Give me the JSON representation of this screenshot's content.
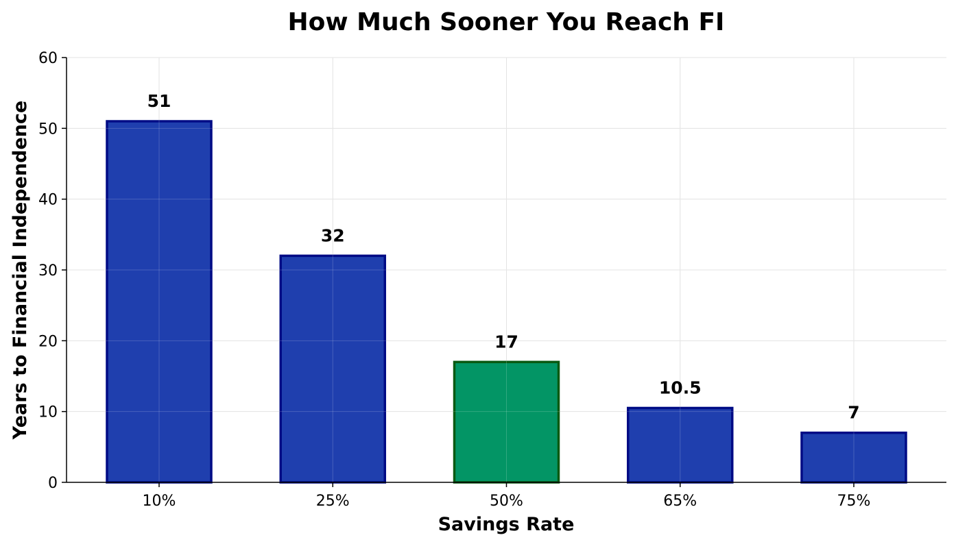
{
  "chart_data": {
    "type": "bar",
    "title": "How Much Sooner You Reach FI",
    "xlabel": "Savings Rate",
    "ylabel": "Years to Financial Independence",
    "categories": [
      "10%",
      "25%",
      "50%",
      "65%",
      "75%"
    ],
    "values": [
      51,
      32,
      17,
      10.5,
      7
    ],
    "data_labels": [
      "51",
      "32",
      "17",
      "10.5",
      "7"
    ],
    "highlight_category": "50%",
    "ylim": [
      0,
      60
    ],
    "yticks": [
      0,
      10,
      20,
      30,
      40,
      50,
      60
    ],
    "grid": true,
    "legend": "none",
    "colors": {
      "bar_fill": "#1f3fae",
      "bar_edge": "#000b85",
      "highlight_fill": "#039565",
      "highlight_edge": "#0a5a12",
      "grid": "#dddddd",
      "axis": "#000000"
    }
  }
}
